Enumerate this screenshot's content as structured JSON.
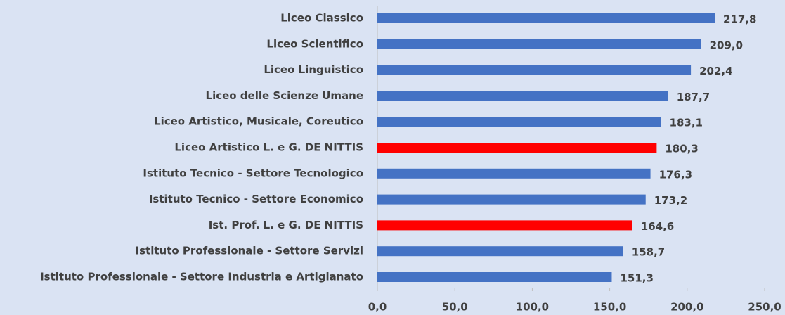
{
  "chart_data": {
    "type": "bar",
    "orientation": "horizontal",
    "categories": [
      "Liceo Classico",
      "Liceo Scientifico",
      "Liceo Linguistico",
      "Liceo delle Scienze Umane",
      "Liceo Artistico, Musicale, Coreutico",
      "Liceo Artistico L. e G. DE NITTIS",
      "Istituto Tecnico - Settore Tecnologico",
      "Istituto Tecnico - Settore Economico",
      "Ist. Prof. L. e G. DE NITTIS",
      "Istituto Professionale - Settore Servizi",
      "Istituto Professionale - Settore Industria e Artigianato"
    ],
    "values": [
      217.8,
      209.0,
      202.4,
      187.7,
      183.1,
      180.3,
      176.3,
      173.2,
      164.6,
      158.7,
      151.3
    ],
    "value_labels": [
      "217,8",
      "209,0",
      "202,4",
      "187,7",
      "183,1",
      "180,3",
      "176,3",
      "173,2",
      "164,6",
      "158,7",
      "151,3"
    ],
    "colors": [
      "#4472c4",
      "#4472c4",
      "#4472c4",
      "#4472c4",
      "#4472c4",
      "#ff0000",
      "#4472c4",
      "#4472c4",
      "#ff0000",
      "#4472c4",
      "#4472c4"
    ],
    "xlim": [
      0,
      250
    ],
    "xticks": [
      {
        "value": 0,
        "label": "0,0"
      },
      {
        "value": 50,
        "label": "50,0"
      },
      {
        "value": 100,
        "label": "100,0"
      },
      {
        "value": 150,
        "label": "150,0"
      },
      {
        "value": 200,
        "label": "200,0"
      },
      {
        "value": 250,
        "label": "250,0"
      }
    ],
    "grid": false
  }
}
